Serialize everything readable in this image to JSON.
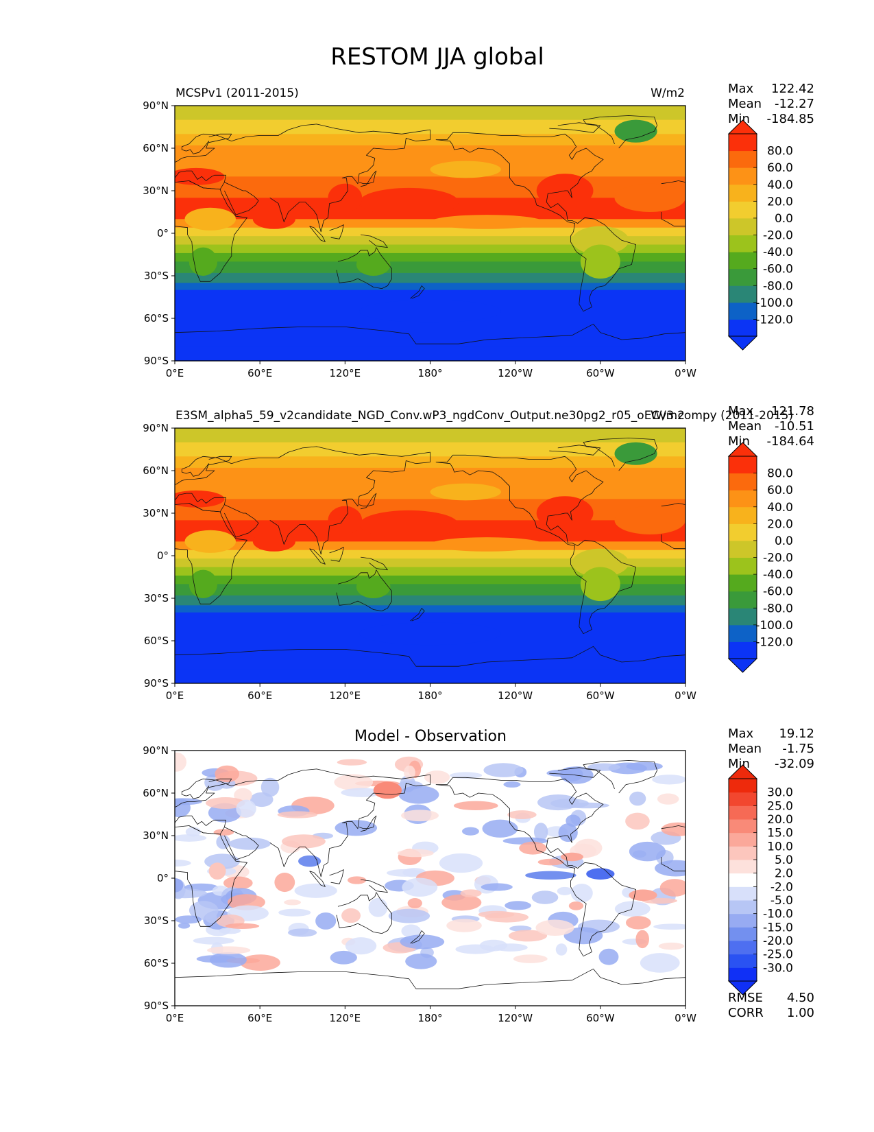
{
  "title": "RESTOM JJA global",
  "xticks": [
    "0°E",
    "60°E",
    "120°E",
    "180°",
    "120°W",
    "60°W",
    "0°W"
  ],
  "yticks": [
    "90°N",
    "60°N",
    "30°N",
    "0°",
    "30°S",
    "60°S",
    "90°S"
  ],
  "stat_names": {
    "max": "Max",
    "mean": "Mean",
    "min": "Min",
    "rmse": "RMSE",
    "corr": "CORR"
  },
  "colors": {
    "field": [
      "#0b34f5",
      "#0d62c7",
      "#2a8676",
      "#3a9a3a",
      "#55aa1e",
      "#9cc31c",
      "#cdc629",
      "#f2cd2f",
      "#f8b21c",
      "#fd9216",
      "#fb6a0d",
      "#fb300a"
    ],
    "diff": [
      "#1030f6",
      "#2a52f2",
      "#4e6ff0",
      "#7390ef",
      "#97abf2",
      "#b7c6f5",
      "#d8e0fa",
      "#ffffff",
      "#fde1dc",
      "#fcc6bd",
      "#fba89a",
      "#f98a78",
      "#f66a55",
      "#f2472f",
      "#ee2a0c"
    ]
  },
  "chart_data": [
    {
      "type": "heatmap",
      "panel_title": "",
      "left_label": "MCSPv1 (2011-2015)",
      "right_label": "W/m2",
      "stats": {
        "max": "122.42",
        "mean": "-12.27",
        "min": "-184.85"
      },
      "colorbar": {
        "levels": [
          "80.0",
          "60.0",
          "40.0",
          "20.0",
          "0.0",
          "-20.0",
          "-40.0",
          "-60.0",
          "-80.0",
          "-100.0",
          "-120.0"
        ],
        "extend": "both"
      },
      "x": {
        "range": [
          0,
          360
        ],
        "ticks": [
          0,
          60,
          120,
          180,
          240,
          300,
          360
        ]
      },
      "y": {
        "range": [
          -90,
          90
        ],
        "ticks": [
          90,
          60,
          30,
          0,
          -30,
          -60,
          -90
        ]
      }
    },
    {
      "type": "heatmap",
      "panel_title": "",
      "left_label": "E3SM_alpha5_59_v2candidate_NGD_Conv.wP3_ngdConv_Output.ne30pg2_r05_oECv3.compy (2011-2015)",
      "right_label": "W/m2",
      "stats": {
        "max": "121.78",
        "mean": "-10.51",
        "min": "-184.64"
      },
      "colorbar": {
        "levels": [
          "80.0",
          "60.0",
          "40.0",
          "20.0",
          "0.0",
          "-20.0",
          "-40.0",
          "-60.0",
          "-80.0",
          "-100.0",
          "-120.0"
        ],
        "extend": "both"
      },
      "x": {
        "range": [
          0,
          360
        ],
        "ticks": [
          0,
          60,
          120,
          180,
          240,
          300,
          360
        ]
      },
      "y": {
        "range": [
          -90,
          90
        ],
        "ticks": [
          90,
          60,
          30,
          0,
          -30,
          -60,
          -90
        ]
      }
    },
    {
      "type": "heatmap",
      "panel_title": "Model - Observation",
      "left_label": "",
      "right_label": "",
      "stats": {
        "max": "19.12",
        "mean": "-1.75",
        "min": "-32.09",
        "rmse": "4.50",
        "corr": "1.00"
      },
      "colorbar": {
        "levels": [
          "30.0",
          "25.0",
          "20.0",
          "15.0",
          "10.0",
          "5.0",
          "2.0",
          "-2.0",
          "-5.0",
          "-10.0",
          "-15.0",
          "-20.0",
          "-25.0",
          "-30.0"
        ],
        "extend": "both"
      },
      "x": {
        "range": [
          0,
          360
        ],
        "ticks": [
          0,
          60,
          120,
          180,
          240,
          300,
          360
        ]
      },
      "y": {
        "range": [
          -90,
          90
        ],
        "ticks": [
          90,
          60,
          30,
          0,
          -30,
          -60,
          -90
        ]
      }
    }
  ]
}
